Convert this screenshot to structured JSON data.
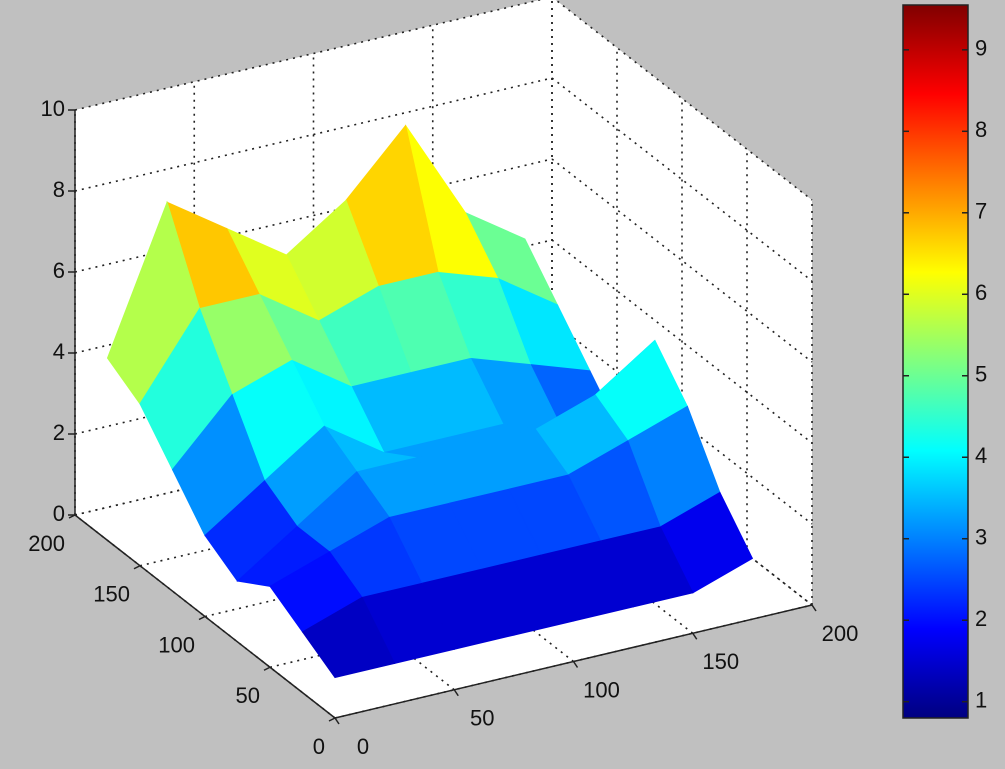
{
  "chart_data": {
    "type": "surface",
    "x": [
      0,
      25,
      50,
      75,
      100,
      125,
      150,
      175
    ],
    "y": [
      0,
      25,
      50,
      75,
      100,
      125,
      150,
      175
    ],
    "z": [
      [
        1,
        1,
        1,
        1,
        1,
        1,
        1,
        1.5
      ],
      [
        1.5,
        2,
        2,
        2,
        2,
        2,
        2,
        2.5
      ],
      [
        2,
        2.5,
        3,
        3,
        3,
        3,
        3.5,
        4
      ],
      [
        1.5,
        2.5,
        3.5,
        3.5,
        3.5,
        3.5,
        4,
        5
      ],
      [
        2,
        3,
        4,
        3,
        3,
        3,
        2.5,
        2
      ],
      [
        3,
        4.5,
        5,
        4,
        4,
        4,
        3.5,
        3
      ],
      [
        4,
        6,
        6,
        5,
        5.5,
        5.5,
        5,
        4
      ],
      [
        4.5,
        8,
        7,
        6,
        7,
        8.5,
        6,
        5
      ]
    ],
    "xlim": [
      0,
      200
    ],
    "ylim": [
      0,
      200
    ],
    "zlim": [
      0,
      10
    ],
    "xticks": [
      0,
      50,
      100,
      150,
      200
    ],
    "yticks": [
      0,
      50,
      100,
      150,
      200
    ],
    "zticks": [
      0,
      2,
      4,
      6,
      8,
      10
    ],
    "grid": true,
    "colormap": "jet",
    "colorbar": {
      "clim": [
        0.8,
        9.55
      ],
      "ticks": [
        1,
        2,
        3,
        4,
        5,
        6,
        7,
        8,
        9
      ]
    }
  }
}
